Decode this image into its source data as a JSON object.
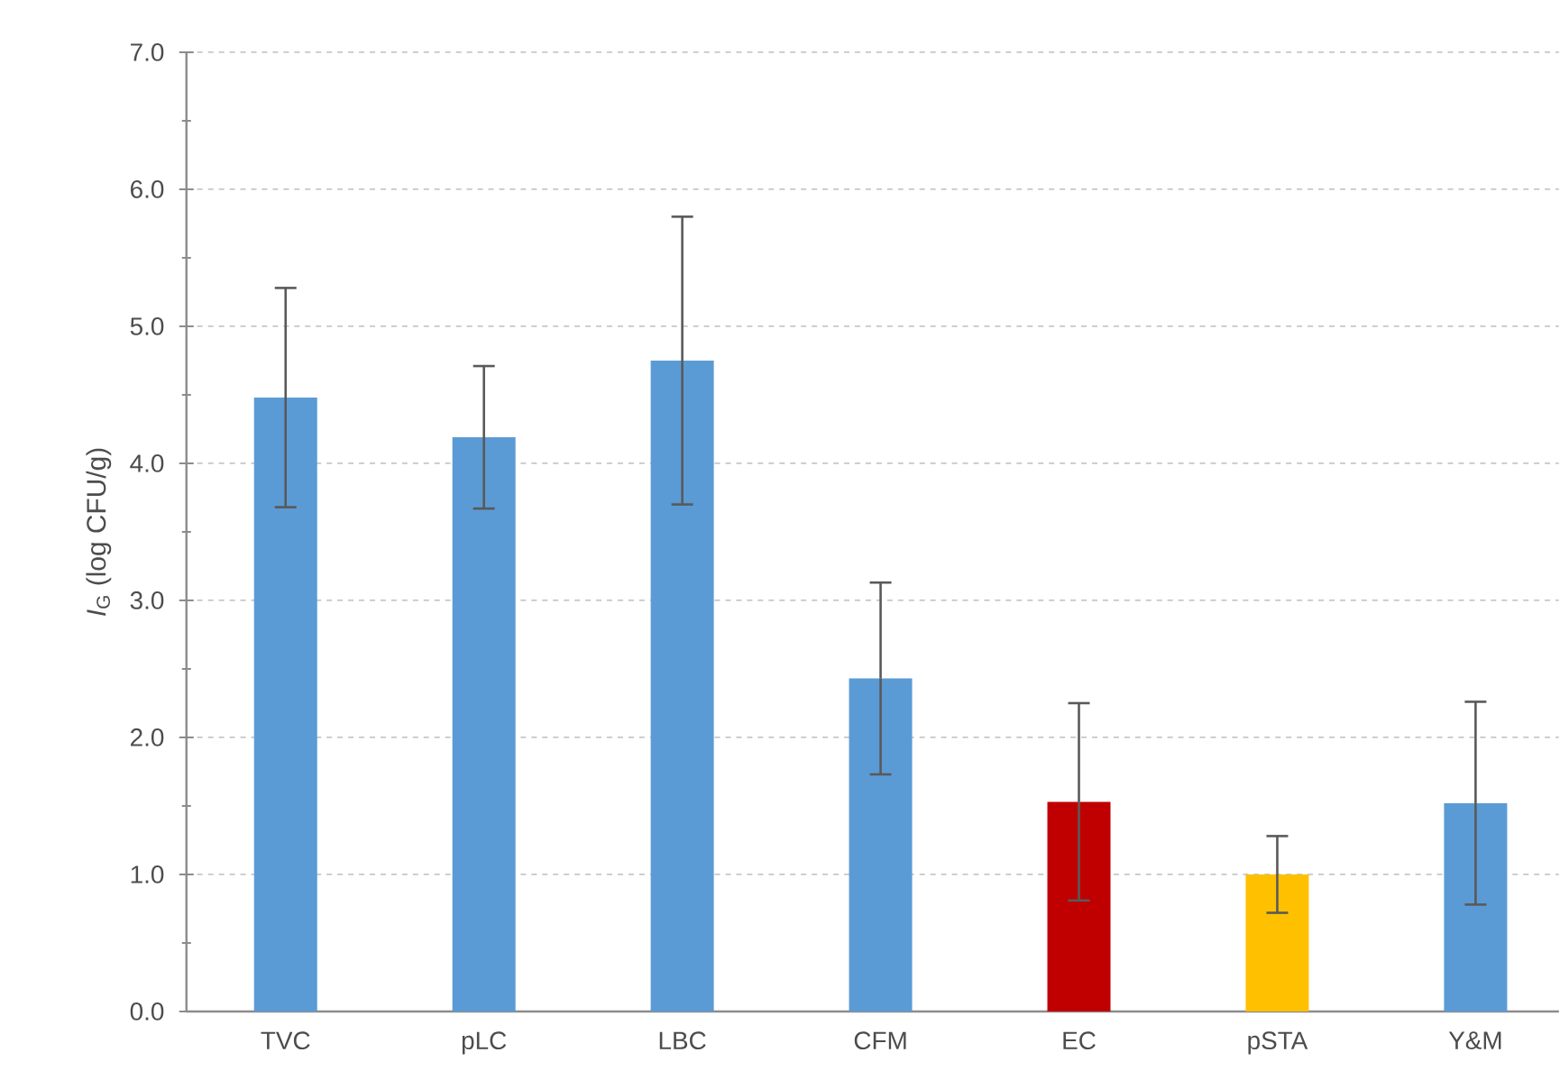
{
  "chart_data": {
    "type": "bar",
    "ylabel": "*I*$_{G}$  (log CFU/g)",
    "categories": [
      "TVC",
      "pLC",
      "LBC",
      "CFM",
      "EC",
      "pSTA",
      "Y&M"
    ],
    "values": [
      4.48,
      4.19,
      4.75,
      2.43,
      1.53,
      1.0,
      1.52
    ],
    "errors": [
      0.8,
      0.52,
      1.05,
      0.7,
      0.72,
      0.28,
      0.74
    ],
    "colors": [
      "#5b9bd5",
      "#5b9bd5",
      "#5b9bd5",
      "#5b9bd5",
      "#c00000",
      "#ffc000",
      "#5b9bd5"
    ],
    "ylim": [
      0,
      7
    ],
    "yticks": [
      {
        "value": 0,
        "label": "0.0"
      },
      {
        "value": 1,
        "label": "1.0"
      },
      {
        "value": 2,
        "label": "2.0"
      },
      {
        "value": 3,
        "label": "3.0"
      },
      {
        "value": 4,
        "label": "4.0"
      },
      {
        "value": 5,
        "label": "5.0"
      },
      {
        "value": 6,
        "label": "6.0"
      },
      {
        "value": 7,
        "label": "7.0"
      }
    ],
    "grid": "y"
  }
}
